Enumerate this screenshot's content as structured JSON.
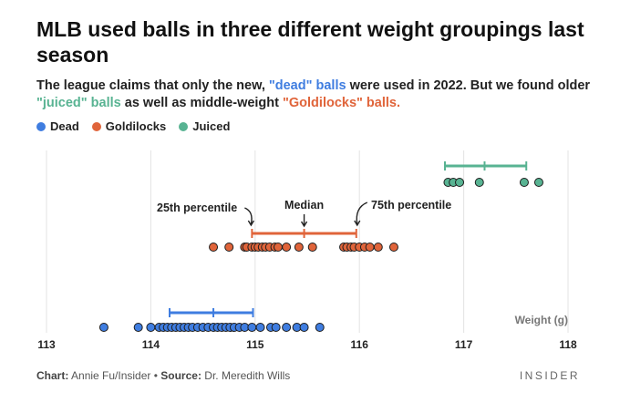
{
  "title": "MLB used balls in three different weight groupings last season",
  "subtitle": {
    "part1": "The league claims that only the new, ",
    "dead": "\"dead\" balls",
    "part2": " were used in 2022. But we found older ",
    "juiced": "\"juiced\" balls",
    "part3": " as well as middle-weight ",
    "goldilocks": "\"Goldilocks\" balls."
  },
  "legend": [
    {
      "label": "Dead",
      "color": "#3f7de0"
    },
    {
      "label": "Goldilocks",
      "color": "#e0643a"
    },
    {
      "label": "Juiced",
      "color": "#58b392"
    }
  ],
  "footer": {
    "chart_label": "Chart:",
    "chart_author": " Annie Fu/Insider • ",
    "source_label": "Source:",
    "source_text": " Dr. Meredith Wills"
  },
  "brand": "INSIDER",
  "chart_data": {
    "type": "scatter",
    "xlabel": "Weight (g)",
    "xlim": [
      113,
      118
    ],
    "x_ticks": [
      113,
      114,
      115,
      116,
      117,
      118
    ],
    "grid": "vertical",
    "annotations": {
      "p25": "25th percentile",
      "median": "Median",
      "p75": "75th percentile"
    },
    "series": [
      {
        "name": "Juiced",
        "color": "#58b392",
        "values": [
          116.85,
          116.9,
          116.96,
          117.15,
          117.58,
          117.72
        ],
        "range": {
          "p25": 116.82,
          "median": 117.2,
          "p75": 117.6
        }
      },
      {
        "name": "Goldilocks",
        "color": "#e0643a",
        "values": [
          114.6,
          114.75,
          114.9,
          114.92,
          114.97,
          115.0,
          115.03,
          115.07,
          115.1,
          115.14,
          115.19,
          115.22,
          115.3,
          115.42,
          115.55,
          115.85,
          115.88,
          115.92,
          115.95,
          116.0,
          116.05,
          116.1,
          116.18,
          116.33
        ],
        "range": {
          "p25": 114.97,
          "median": 115.47,
          "p75": 115.97
        }
      },
      {
        "name": "Dead",
        "color": "#3f7de0",
        "values": [
          113.55,
          113.88,
          114.0,
          114.08,
          114.12,
          114.16,
          114.2,
          114.24,
          114.28,
          114.32,
          114.36,
          114.4,
          114.45,
          114.5,
          114.55,
          114.6,
          114.64,
          114.68,
          114.72,
          114.76,
          114.8,
          114.85,
          114.9,
          114.97,
          115.05,
          115.15,
          115.2,
          115.3,
          115.4,
          115.47,
          115.62
        ],
        "range": {
          "p25": 114.18,
          "median": 114.6,
          "p75": 114.98
        }
      }
    ]
  }
}
